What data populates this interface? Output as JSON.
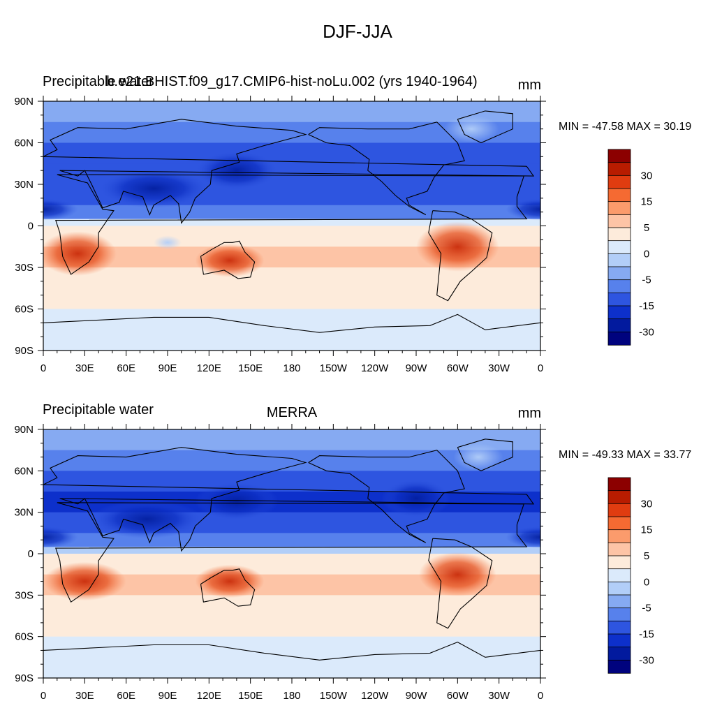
{
  "main_title": "DJF-JJA",
  "panels": [
    {
      "left_title": "Precipitable water",
      "center_title": "b.e21.BHIST.f09_g17.CMIP6-hist-noLu.002 (yrs 1940-1964)",
      "units": "mm",
      "stats": "MIN = -47.58 MAX =  30.19"
    },
    {
      "left_title": "Precipitable water",
      "center_title": "MERRA",
      "units": "mm",
      "stats": "MIN = -49.33 MAX =  33.77"
    }
  ],
  "colorbar": {
    "colors": [
      "#8c0000",
      "#b81c00",
      "#e03c10",
      "#f56a32",
      "#fb9b6c",
      "#fdc4a6",
      "#fdebdb",
      "#dbeafb",
      "#b2cef8",
      "#86aaf2",
      "#5781ec",
      "#2e55e0",
      "#0d30cb",
      "#021a9e",
      "#00037e"
    ],
    "labels": [
      "30",
      "15",
      "5",
      "0",
      "-5",
      "-15",
      "-30"
    ]
  },
  "chart_data": {
    "type": "heatmap",
    "variable": "Precipitable water",
    "units": "mm",
    "x_ticks": [
      "0",
      "30E",
      "60E",
      "90E",
      "120E",
      "150E",
      "180",
      "150W",
      "120W",
      "90W",
      "60W",
      "30W",
      "0"
    ],
    "y_ticks": [
      "90N",
      "60N",
      "30N",
      "0",
      "30S",
      "60S",
      "90S"
    ],
    "xlim": [
      0,
      360
    ],
    "ylim": [
      -90,
      90
    ],
    "levels": [
      -40,
      -35,
      -30,
      -25,
      -20,
      -15,
      -10,
      -5,
      0,
      5,
      10,
      15,
      20,
      25,
      30,
      35
    ],
    "panels": [
      {
        "name": "b.e21.BHIST.f09_g17.CMIP6-hist-noLu.002 (yrs 1940-1964)",
        "min": -47.58,
        "max": 30.19,
        "zonal_profile": [
          {
            "lat": 90,
            "value": -6
          },
          {
            "lat": 75,
            "value": -10
          },
          {
            "lat": 60,
            "value": -14
          },
          {
            "lat": 45,
            "value": -20
          },
          {
            "lat": 30,
            "value": -18
          },
          {
            "lat": 15,
            "value": -17
          },
          {
            "lat": 5,
            "value": -5
          },
          {
            "lat": 0,
            "value": 5
          },
          {
            "lat": -15,
            "value": 12
          },
          {
            "lat": -30,
            "value": 10
          },
          {
            "lat": -45,
            "value": 7
          },
          {
            "lat": -60,
            "value": 4
          },
          {
            "lat": -75,
            "value": 2
          },
          {
            "lat": -90,
            "value": 1
          }
        ]
      },
      {
        "name": "MERRA",
        "min": -49.33,
        "max": 33.77,
        "zonal_profile": [
          {
            "lat": 90,
            "value": -7
          },
          {
            "lat": 75,
            "value": -12
          },
          {
            "lat": 60,
            "value": -16
          },
          {
            "lat": 45,
            "value": -21
          },
          {
            "lat": 30,
            "value": -20
          },
          {
            "lat": 15,
            "value": -18
          },
          {
            "lat": 5,
            "value": -6
          },
          {
            "lat": 0,
            "value": 4
          },
          {
            "lat": -15,
            "value": 13
          },
          {
            "lat": -30,
            "value": 11
          },
          {
            "lat": -45,
            "value": 7
          },
          {
            "lat": -60,
            "value": 4
          },
          {
            "lat": -75,
            "value": 2
          },
          {
            "lat": -90,
            "value": 1
          }
        ]
      }
    ]
  }
}
